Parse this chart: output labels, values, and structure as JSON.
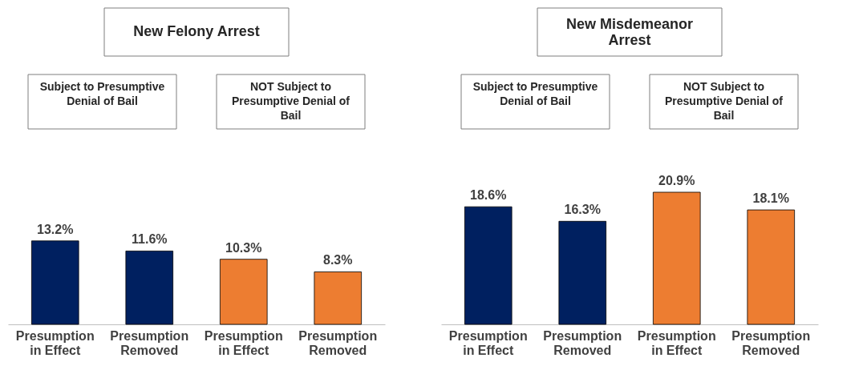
{
  "chart_data": [
    {
      "type": "bar",
      "title": "New Felony Arrest",
      "categories": [
        "Presumption in Effect",
        "Presumption Removed",
        "Presumption in Effect",
        "Presumption Removed"
      ],
      "values": [
        13.2,
        11.6,
        10.3,
        8.3
      ],
      "colors": [
        "#002060",
        "#002060",
        "#ed7d31",
        "#ed7d31"
      ],
      "value_labels": [
        "13.2%",
        "11.6%",
        "10.3%",
        "8.3%"
      ],
      "annotations": [
        "Subject to Presumptive Denial of Bail",
        "NOT Subject to Presumptive Denial of Bail"
      ],
      "relative": false
    },
    {
      "type": "bar",
      "title": "New Misdemeanor Arrest",
      "categories": [
        "Presumption in Effect",
        "Presumption Removed",
        "Presumption in Effect",
        "Presumption Removed"
      ],
      "values": [
        18.6,
        16.3,
        20.9,
        18.1
      ],
      "colors": [
        "#002060",
        "#002060",
        "#ed7d31",
        "#ed7d31"
      ],
      "value_labels": [
        "18.6%",
        "16.3%",
        "20.9%",
        "18.1%"
      ],
      "annotations": [
        "Subject to Presumptive Denial of Bail",
        "NOT Subject to Presumptive Denial of Bail"
      ],
      "relative": false
    }
  ]
}
